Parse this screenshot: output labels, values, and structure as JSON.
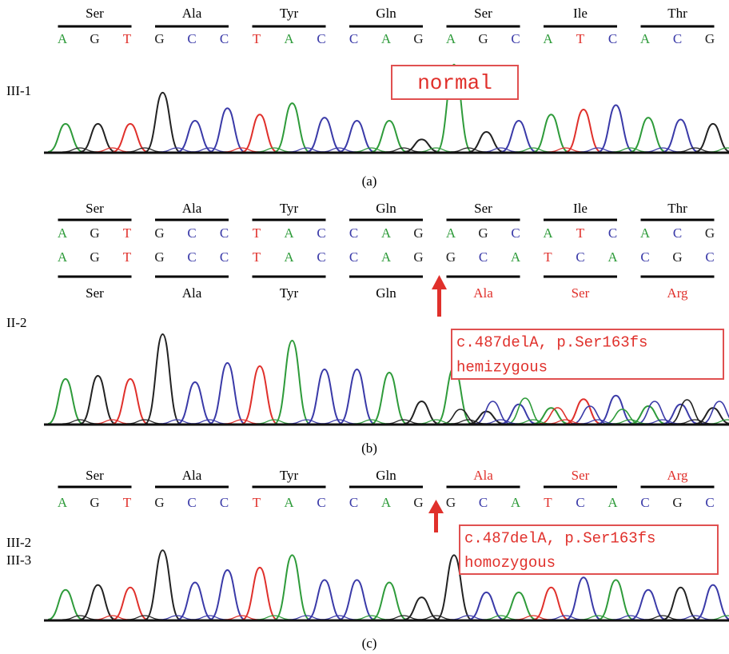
{
  "base_colors": {
    "A": "#2e9b3a",
    "G": "#222222",
    "T": "#e0302b",
    "C": "#3a3aa8"
  },
  "panels": [
    {
      "label": "(a)",
      "samples": [
        "III-1"
      ],
      "rows": [
        {
          "codons": [
            {
              "name": "Ser",
              "color": "#000000"
            },
            {
              "name": "Ala",
              "color": "#000000"
            },
            {
              "name": "Tyr",
              "color": "#000000"
            },
            {
              "name": "Gln",
              "color": "#000000"
            },
            {
              "name": "Ser",
              "color": "#000000"
            },
            {
              "name": "Ile",
              "color": "#000000"
            },
            {
              "name": "Thr",
              "color": "#000000"
            }
          ],
          "bases": [
            "A",
            "G",
            "T",
            "G",
            "C",
            "C",
            "T",
            "A",
            "C",
            "C",
            "A",
            "G",
            "A",
            "G",
            "C",
            "A",
            "T",
            "C",
            "A",
            "C",
            "G"
          ]
        }
      ],
      "annotation": [
        "normal"
      ]
    },
    {
      "label": "(b)",
      "samples": [
        "II-2"
      ],
      "rows": [
        {
          "codons": [
            {
              "name": "Ser",
              "color": "#000000"
            },
            {
              "name": "Ala",
              "color": "#000000"
            },
            {
              "name": "Tyr",
              "color": "#000000"
            },
            {
              "name": "Gln",
              "color": "#000000"
            },
            {
              "name": "Ser",
              "color": "#000000"
            },
            {
              "name": "Ile",
              "color": "#000000"
            },
            {
              "name": "Thr",
              "color": "#000000"
            }
          ],
          "bases": [
            "A",
            "G",
            "T",
            "G",
            "C",
            "C",
            "T",
            "A",
            "C",
            "C",
            "A",
            "G",
            "A",
            "G",
            "C",
            "A",
            "T",
            "C",
            "A",
            "C",
            "G"
          ]
        },
        {
          "codons": [
            {
              "name": "Ser",
              "color": "#000000"
            },
            {
              "name": "Ala",
              "color": "#000000"
            },
            {
              "name": "Tyr",
              "color": "#000000"
            },
            {
              "name": "Gln",
              "color": "#000000"
            },
            {
              "name": "Ala",
              "color": "#e0302b"
            },
            {
              "name": "Ser",
              "color": "#e0302b"
            },
            {
              "name": "Arg",
              "color": "#e0302b"
            }
          ],
          "bases": [
            "A",
            "G",
            "T",
            "G",
            "C",
            "C",
            "T",
            "A",
            "C",
            "C",
            "A",
            "G",
            "G",
            "C",
            "A",
            "T",
            "C",
            "A",
            "C",
            "G",
            "C"
          ]
        }
      ],
      "annotation": [
        "c.487delA, p.Ser163fs",
        "hemizygous"
      ]
    },
    {
      "label": "(c)",
      "samples": [
        "III-2",
        "III-3"
      ],
      "rows": [
        {
          "codons": [
            {
              "name": "Ser",
              "color": "#000000"
            },
            {
              "name": "Ala",
              "color": "#000000"
            },
            {
              "name": "Tyr",
              "color": "#000000"
            },
            {
              "name": "Gln",
              "color": "#000000"
            },
            {
              "name": "Ala",
              "color": "#e0302b"
            },
            {
              "name": "Ser",
              "color": "#e0302b"
            },
            {
              "name": "Arg",
              "color": "#e0302b"
            }
          ],
          "bases": [
            "A",
            "G",
            "T",
            "G",
            "C",
            "C",
            "T",
            "A",
            "C",
            "C",
            "A",
            "G",
            "G",
            "C",
            "A",
            "T",
            "C",
            "A",
            "C",
            "G",
            "C"
          ]
        }
      ],
      "annotation": [
        "c.487delA, p.Ser163fs",
        "homozygous"
      ]
    }
  ]
}
